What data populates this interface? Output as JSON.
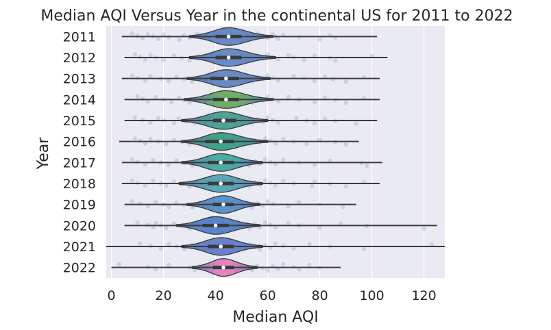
{
  "chart_data": {
    "type": "violin",
    "orientation": "horizontal",
    "title": "Median AQI Versus Year in the continental US for 2011 to 2022",
    "xlabel": "Median AQI",
    "ylabel": "Year",
    "xlim": [
      -2,
      128
    ],
    "xticks": [
      0,
      20,
      40,
      60,
      80,
      100,
      120
    ],
    "grid": true,
    "legend": "none",
    "colors": {
      "background": "#eaeaf2",
      "grid": "#ffffff",
      "violin_fill": "#4c72b0",
      "outline": "#3a3a3a",
      "points": "#8fa7d6"
    },
    "categories": [
      "2011",
      "2012",
      "2013",
      "2014",
      "2015",
      "2016",
      "2017",
      "2018",
      "2019",
      "2020",
      "2021",
      "2022"
    ],
    "series": [
      {
        "year": "2011",
        "whisker": [
          4,
          102
        ],
        "q1": 40,
        "median": 45,
        "q3": 50,
        "violin": [
          30,
          62
        ],
        "center_color": "#5a7fc0",
        "points": [
          8,
          10,
          12,
          14,
          16,
          18,
          20,
          22,
          26,
          28,
          30,
          33,
          36,
          38,
          40,
          42,
          44,
          46,
          48,
          50,
          52,
          54,
          56,
          58,
          60,
          62,
          63,
          64,
          66,
          72,
          80,
          84,
          86
        ]
      },
      {
        "year": "2012",
        "whisker": [
          5,
          106
        ],
        "q1": 40,
        "median": 45,
        "q3": 50,
        "violin": [
          30,
          63
        ],
        "center_color": "#5a7fc0",
        "points": [
          9,
          11,
          13,
          15,
          17,
          20,
          24,
          27,
          30,
          33,
          36,
          38,
          40,
          42,
          44,
          46,
          48,
          50,
          52,
          54,
          56,
          58,
          60,
          62,
          64,
          68,
          70,
          74,
          78,
          84,
          86,
          100
        ]
      },
      {
        "year": "2013",
        "whisker": [
          4,
          103
        ],
        "q1": 38,
        "median": 44,
        "q3": 49,
        "violin": [
          29,
          61
        ],
        "center_color": "#5a7fc0",
        "points": [
          8,
          10,
          13,
          15,
          19,
          22,
          25,
          28,
          31,
          34,
          36,
          38,
          40,
          42,
          44,
          46,
          48,
          50,
          52,
          54,
          56,
          58,
          60,
          62,
          64,
          70,
          74,
          78,
          82,
          85,
          90,
          97
        ]
      },
      {
        "year": "2014",
        "whisker": [
          5,
          103
        ],
        "q1": 39,
        "median": 44,
        "q3": 49,
        "violin": [
          28,
          62
        ],
        "center_color": "#62a85a",
        "points": [
          10,
          12,
          14,
          17,
          20,
          23,
          26,
          28,
          30,
          34,
          36,
          38,
          40,
          42,
          44,
          46,
          48,
          50,
          52,
          54,
          56,
          58,
          60,
          62,
          64,
          68,
          72,
          78,
          82,
          86,
          90,
          97
        ]
      },
      {
        "year": "2015",
        "whisker": [
          5,
          102
        ],
        "q1": 39,
        "median": 43,
        "q3": 48,
        "violin": [
          27,
          60
        ],
        "center_color": "#3c9a8a",
        "points": [
          9,
          12,
          15,
          18,
          20,
          24,
          26,
          29,
          32,
          34,
          36,
          38,
          40,
          42,
          44,
          46,
          48,
          50,
          52,
          54,
          56,
          58,
          60,
          62,
          64,
          71,
          75,
          78,
          82,
          86,
          94
        ]
      },
      {
        "year": "2016",
        "whisker": [
          3,
          95
        ],
        "q1": 36,
        "median": 42,
        "q3": 47,
        "violin": [
          27,
          60
        ],
        "center_color": "#2f9a7a",
        "points": [
          9,
          11,
          13,
          15,
          18,
          21,
          24,
          27,
          30,
          33,
          35,
          37,
          39,
          41,
          43,
          45,
          47,
          49,
          51,
          53,
          55,
          57,
          59,
          61,
          63,
          66,
          70,
          75,
          80,
          86,
          90
        ]
      },
      {
        "year": "2017",
        "whisker": [
          4,
          104
        ],
        "q1": 37,
        "median": 42,
        "q3": 47,
        "violin": [
          27,
          58
        ],
        "center_color": "#3aa69a",
        "points": [
          8,
          10,
          13,
          16,
          19,
          22,
          25,
          28,
          31,
          33,
          35,
          37,
          39,
          41,
          43,
          45,
          47,
          49,
          51,
          53,
          55,
          57,
          59,
          61,
          63,
          66,
          72,
          78,
          84,
          96,
          98
        ]
      },
      {
        "year": "2018",
        "whisker": [
          4,
          103
        ],
        "q1": 37,
        "median": 42,
        "q3": 47,
        "violin": [
          26,
          58
        ],
        "center_color": "#4aa0b0",
        "points": [
          8,
          10,
          13,
          16,
          19,
          21,
          24,
          27,
          30,
          33,
          35,
          37,
          39,
          41,
          43,
          45,
          47,
          49,
          51,
          53,
          55,
          57,
          59,
          61,
          63,
          66,
          70,
          77,
          78,
          84,
          90,
          97
        ]
      },
      {
        "year": "2019",
        "whisker": [
          5,
          94
        ],
        "q1": 39,
        "median": 43,
        "q3": 47,
        "violin": [
          29,
          57
        ],
        "center_color": "#4a8ac4",
        "points": [
          8,
          11,
          14,
          17,
          20,
          22,
          25,
          28,
          31,
          34,
          36,
          38,
          40,
          42,
          44,
          46,
          48,
          50,
          52,
          54,
          56,
          58,
          60,
          62,
          68,
          72,
          80,
          89
        ]
      },
      {
        "year": "2020",
        "whisker": [
          5,
          125
        ],
        "q1": 35,
        "median": 40,
        "q3": 45,
        "violin": [
          25,
          57
        ],
        "center_color": "#4a7ac8",
        "points": [
          10,
          14,
          16,
          17,
          19,
          21,
          24,
          27,
          30,
          33,
          35,
          37,
          39,
          41,
          43,
          45,
          47,
          49,
          51,
          53,
          55,
          57,
          59,
          61,
          63,
          68,
          72,
          80,
          88,
          98,
          120
        ]
      },
      {
        "year": "2021",
        "whisker": [
          -2,
          128
        ],
        "q1": 37,
        "median": 42,
        "q3": 47,
        "violin": [
          27,
          58
        ],
        "center_color": "#5a78c8",
        "points": [
          11,
          15,
          19,
          22,
          25,
          28,
          31,
          33,
          35,
          37,
          39,
          41,
          43,
          45,
          47,
          49,
          51,
          53,
          55,
          57,
          59,
          61,
          63,
          66,
          70,
          76,
          84,
          97,
          123
        ]
      },
      {
        "year": "2022",
        "whisker": [
          0,
          88
        ],
        "q1": 39,
        "median": 43,
        "q3": 47,
        "violin": [
          31,
          56
        ],
        "center_color": "#e07ab8",
        "points": [
          3,
          14,
          17,
          22,
          30,
          32,
          34,
          36,
          38,
          40,
          42,
          44,
          46,
          48,
          50,
          52,
          54,
          56,
          58,
          60,
          62,
          64,
          66,
          70,
          72,
          76,
          80
        ]
      }
    ]
  }
}
